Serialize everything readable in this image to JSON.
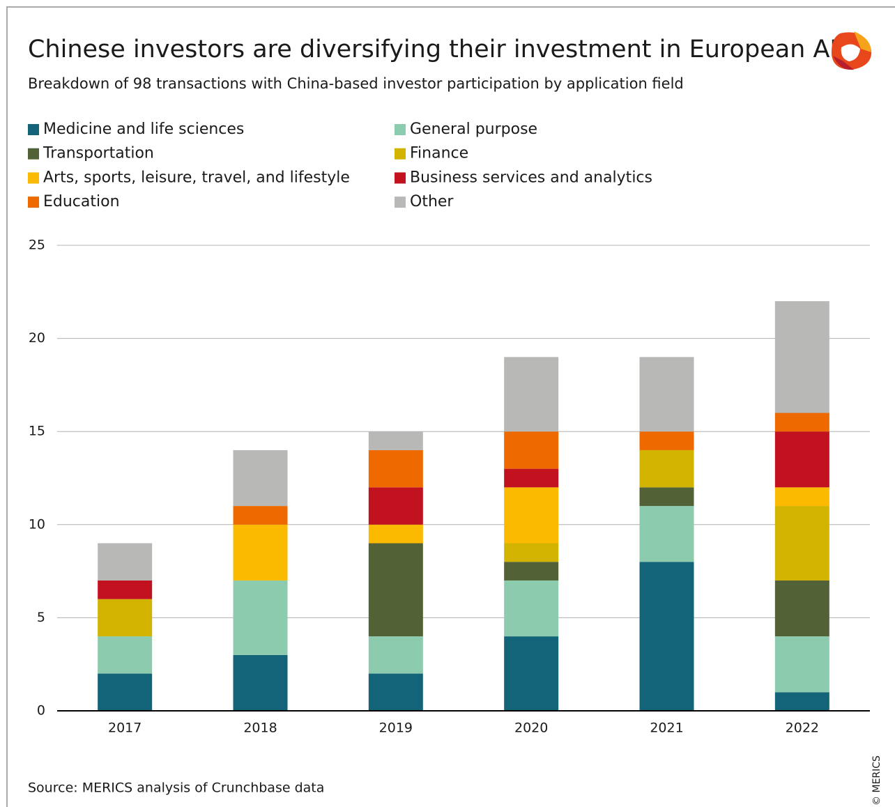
{
  "chart_data": {
    "type": "stacked_bar",
    "title": "Chinese investors are diversifying their investment in European AI",
    "subtitle": "Breakdown of 98 transactions with China-based investor participation by application field",
    "source": "Source: MERICS analysis of Crunchbase data",
    "credit": "© MERICS",
    "categories": [
      "2017",
      "2018",
      "2019",
      "2020",
      "2021",
      "2022"
    ],
    "series": [
      {
        "name": "Medicine and life sciences",
        "color": "#136478",
        "values": [
          2,
          3,
          2,
          4,
          8,
          1
        ]
      },
      {
        "name": "General purpose",
        "color": "#8ccbad",
        "values": [
          2,
          4,
          2,
          3,
          3,
          3
        ]
      },
      {
        "name": "Transportation",
        "color": "#536236",
        "values": [
          0,
          0,
          5,
          1,
          1,
          3
        ]
      },
      {
        "name": "Finance",
        "color": "#d2b400",
        "values": [
          2,
          0,
          0,
          1,
          2,
          4
        ]
      },
      {
        "name": "Arts, sports, leisure, travel, and lifestyle",
        "color": "#fbb900",
        "values": [
          0,
          3,
          1,
          3,
          0,
          1
        ]
      },
      {
        "name": "Business services and analytics",
        "color": "#c2111f",
        "values": [
          1,
          0,
          2,
          1,
          0,
          3
        ]
      },
      {
        "name": "Education",
        "color": "#ee6a00",
        "values": [
          0,
          1,
          2,
          2,
          1,
          1
        ]
      },
      {
        "name": "Other",
        "color": "#b8b8b7",
        "values": [
          2,
          3,
          1,
          4,
          4,
          6
        ]
      }
    ],
    "ylim": [
      0,
      25
    ],
    "yticks": [
      0,
      5,
      10,
      15,
      20,
      25
    ],
    "grid": true,
    "legend": "top"
  }
}
